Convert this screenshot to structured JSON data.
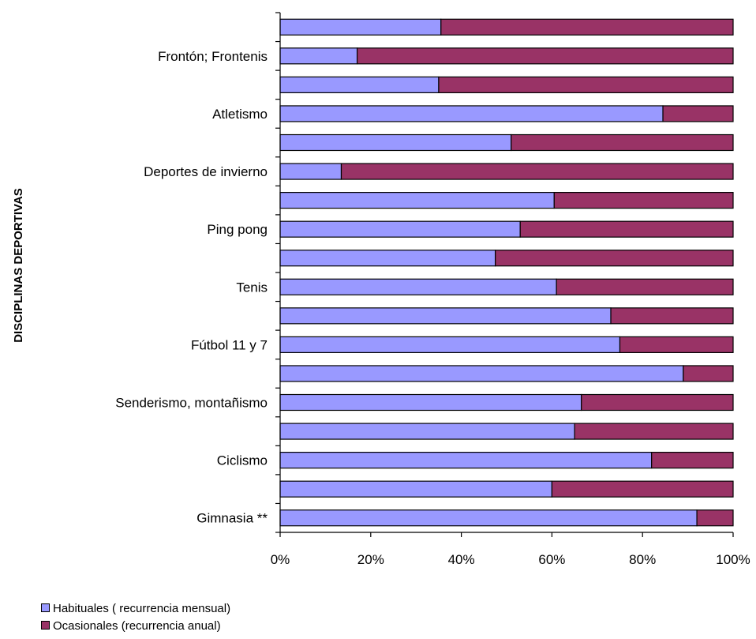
{
  "chart_data": {
    "type": "bar",
    "orientation": "horizontal",
    "stacked": "percent",
    "ylabel": "DISCIPLINAS DEPORTIVAS",
    "xlabel": "",
    "xlim": [
      0,
      100
    ],
    "xticks": [
      "0%",
      "20%",
      "40%",
      "60%",
      "80%",
      "100%"
    ],
    "grid": false,
    "legend_position": "bottom-left",
    "categories": [
      "Gimnasia **",
      "",
      "Ciclismo",
      "",
      "Senderismo, montañismo",
      "",
      "Fútbol 11 y 7",
      "",
      "Tenis",
      "",
      "Ping pong",
      "",
      "Deportes de invierno",
      "",
      "Atletismo",
      "",
      "Frontón; Frontenis",
      ""
    ],
    "series": [
      {
        "name": "Habituales ( recurrencia mensual)",
        "color": "#9999FF",
        "values": [
          92,
          60,
          82,
          65,
          66.5,
          89,
          75,
          73,
          61,
          47.5,
          53,
          60.5,
          13.5,
          51,
          84.5,
          35,
          17,
          35.5
        ]
      },
      {
        "name": "Ocasionales (recurrencia anual)",
        "color": "#993366",
        "values": [
          8,
          40,
          18,
          35,
          33.5,
          11,
          25,
          27,
          39,
          52.5,
          47,
          39.5,
          86.5,
          49,
          15.5,
          65,
          83,
          64.5
        ]
      }
    ]
  }
}
